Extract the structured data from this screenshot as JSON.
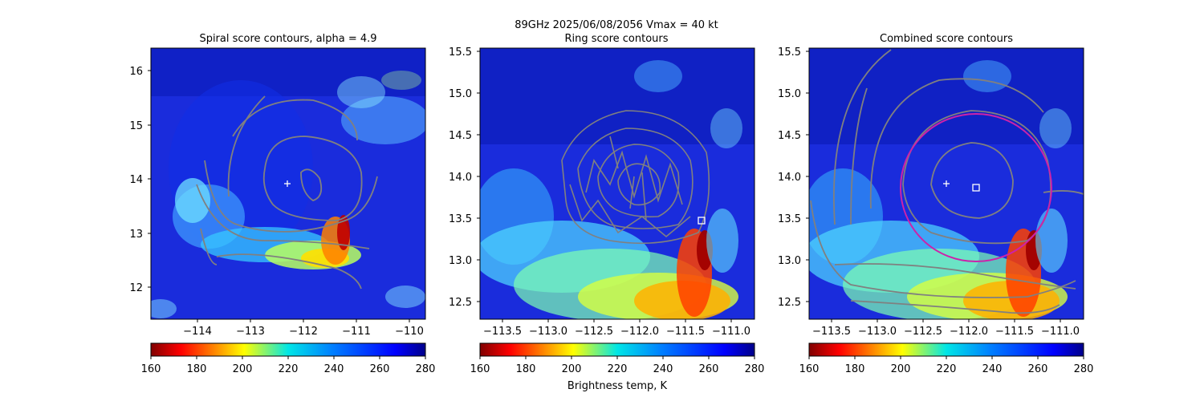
{
  "figure": {
    "suptitle_line1": "89GHz  2025/06/08/2056    Vmax = 40 kt",
    "colorbar_label": "Brightness temp, K"
  },
  "chart_data": [
    {
      "type": "heatmap",
      "title": "Spiral score contours, alpha =  4.9",
      "xlabel": "",
      "ylabel": "",
      "xlim": [
        -114.9,
        -109.7
      ],
      "ylim": [
        11.45,
        16.4
      ],
      "x_ticks": [
        -114,
        -113,
        -112,
        -111,
        -110
      ],
      "x_tick_labels": [
        "−114",
        "−113",
        "−112",
        "−111",
        "−110"
      ],
      "y_ticks": [
        12,
        13,
        14,
        15,
        16
      ],
      "y_tick_labels": [
        "12",
        "13",
        "14",
        "15",
        "16"
      ],
      "markers": [
        {
          "kind": "plus",
          "x": -112.27,
          "y": 13.9,
          "color": "#ffffff"
        }
      ],
      "contour_color": "#808080",
      "grid": false
    },
    {
      "type": "heatmap",
      "title": "Ring score contours",
      "xlabel": "",
      "ylabel": "",
      "xlim": [
        -113.85,
        -110.85
      ],
      "ylim": [
        12.28,
        15.55
      ],
      "x_ticks": [
        -113.5,
        -113.0,
        -112.5,
        -112.0,
        -111.5,
        -111.0
      ],
      "x_tick_labels": [
        "−113.5",
        "−113.0",
        "−112.5",
        "−112.0",
        "−111.5",
        "−111.0"
      ],
      "y_ticks": [
        12.5,
        13.0,
        13.5,
        14.0,
        14.5,
        15.0,
        15.5
      ],
      "y_tick_labels": [
        "12.5",
        "13.0",
        "13.5",
        "14.0",
        "14.5",
        "15.0",
        "15.5"
      ],
      "markers": [
        {
          "kind": "square",
          "x": -111.43,
          "y": 13.46,
          "color": "#ffffff"
        }
      ],
      "contour_color": "#808080",
      "grid": false
    },
    {
      "type": "heatmap",
      "title": "Combined score contours",
      "xlabel": "",
      "ylabel": "",
      "xlim": [
        -113.85,
        -110.85
      ],
      "ylim": [
        12.28,
        15.55
      ],
      "x_ticks": [
        -113.5,
        -113.0,
        -112.5,
        -112.0,
        -111.5,
        -111.0
      ],
      "x_tick_labels": [
        "−113.5",
        "−113.0",
        "−112.5",
        "−112.0",
        "−111.5",
        "−111.0"
      ],
      "y_ticks": [
        12.5,
        13.0,
        13.5,
        14.0,
        14.5,
        15.0,
        15.5
      ],
      "y_tick_labels": [
        "12.5",
        "13.0",
        "13.5",
        "14.0",
        "14.5",
        "15.0",
        "15.5"
      ],
      "markers": [
        {
          "kind": "plus",
          "x": -112.27,
          "y": 13.9,
          "color": "#ffffff"
        },
        {
          "kind": "square",
          "x": -111.97,
          "y": 13.86,
          "color": "#ffffff"
        }
      ],
      "ring": {
        "cx": -112.0,
        "cy": 13.86,
        "r": 0.83,
        "color": "#cc22aa"
      },
      "contour_color": "#808080",
      "grid": false
    }
  ],
  "colorbar": {
    "colormap": "jet_r",
    "min": 160,
    "max": 280,
    "ticks": [
      160,
      180,
      200,
      220,
      240,
      260,
      280
    ],
    "tick_labels": [
      "160",
      "180",
      "200",
      "220",
      "240",
      "260",
      "280"
    ]
  }
}
